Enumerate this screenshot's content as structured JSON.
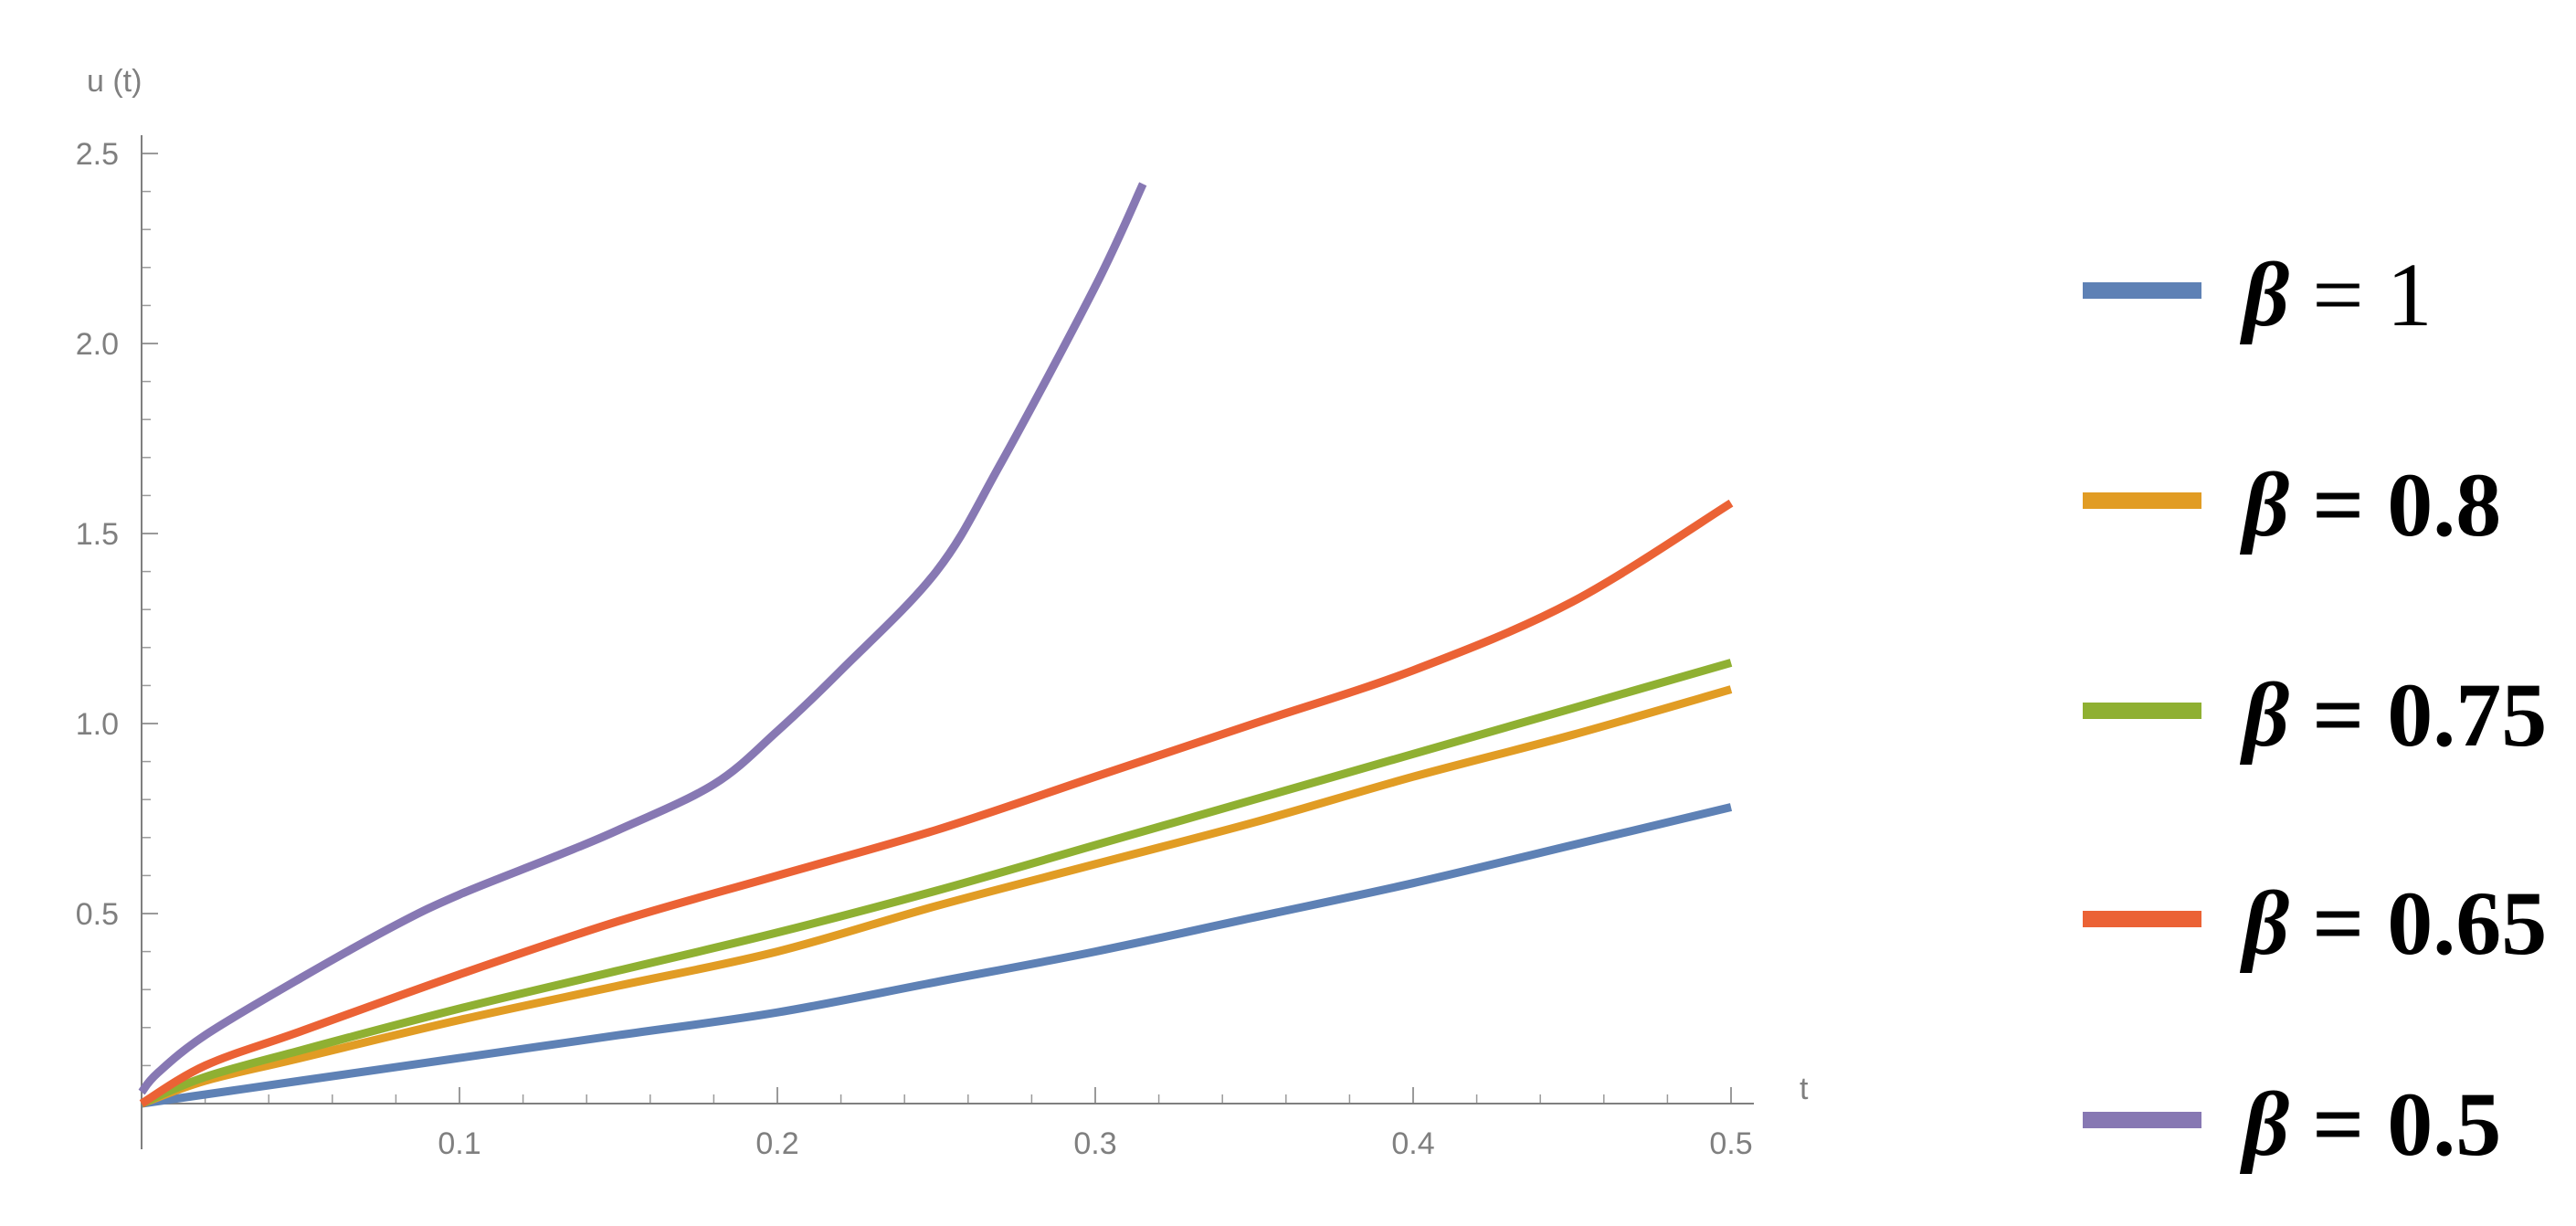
{
  "chart_data": {
    "type": "line",
    "title": "",
    "xlabel": "t",
    "ylabel": "u (t)",
    "xlim": [
      0,
      0.5
    ],
    "ylim": [
      0,
      2.5
    ],
    "xticks": [
      "0.1",
      "0.2",
      "0.3",
      "0.4",
      "0.5"
    ],
    "yticks": [
      "0.5",
      "1.0",
      "1.5",
      "2.0",
      "2.5"
    ],
    "legend_placement": "right",
    "series": [
      {
        "name": "β = 1",
        "color": "#5e81b5",
        "x": [
          0,
          0.05,
          0.1,
          0.15,
          0.2,
          0.25,
          0.3,
          0.35,
          0.4,
          0.45,
          0.5
        ],
        "y": [
          0,
          0.06,
          0.12,
          0.18,
          0.24,
          0.32,
          0.4,
          0.49,
          0.58,
          0.68,
          0.78
        ]
      },
      {
        "name": "β = 0.8",
        "color": "#e19c24",
        "x": [
          0,
          0.02,
          0.05,
          0.1,
          0.15,
          0.2,
          0.25,
          0.3,
          0.35,
          0.4,
          0.45,
          0.5
        ],
        "y": [
          0,
          0.06,
          0.12,
          0.22,
          0.31,
          0.4,
          0.52,
          0.63,
          0.74,
          0.86,
          0.97,
          1.09
        ]
      },
      {
        "name": "β = 0.75",
        "color": "#8fb032",
        "x": [
          0,
          0.02,
          0.05,
          0.1,
          0.15,
          0.2,
          0.25,
          0.3,
          0.35,
          0.4,
          0.45,
          0.5
        ],
        "y": [
          0,
          0.07,
          0.14,
          0.25,
          0.35,
          0.45,
          0.56,
          0.68,
          0.8,
          0.92,
          1.04,
          1.16
        ]
      },
      {
        "name": "β = 0.65",
        "color": "#eb6235",
        "x": [
          0,
          0.02,
          0.05,
          0.1,
          0.15,
          0.2,
          0.25,
          0.3,
          0.35,
          0.4,
          0.45,
          0.5
        ],
        "y": [
          0,
          0.1,
          0.19,
          0.34,
          0.48,
          0.6,
          0.72,
          0.86,
          1.0,
          1.14,
          1.32,
          1.58
        ]
      },
      {
        "name": "β = 0.5",
        "color": "#8778b3",
        "x": [
          0,
          0.005,
          0.02,
          0.05,
          0.08,
          0.1,
          0.13,
          0.15,
          0.18,
          0.2,
          0.22,
          0.25,
          0.27,
          0.3,
          0.315
        ],
        "y": [
          0.03,
          0.08,
          0.18,
          0.33,
          0.47,
          0.55,
          0.65,
          0.72,
          0.84,
          0.98,
          1.14,
          1.4,
          1.68,
          2.15,
          2.42
        ]
      }
    ]
  }
}
